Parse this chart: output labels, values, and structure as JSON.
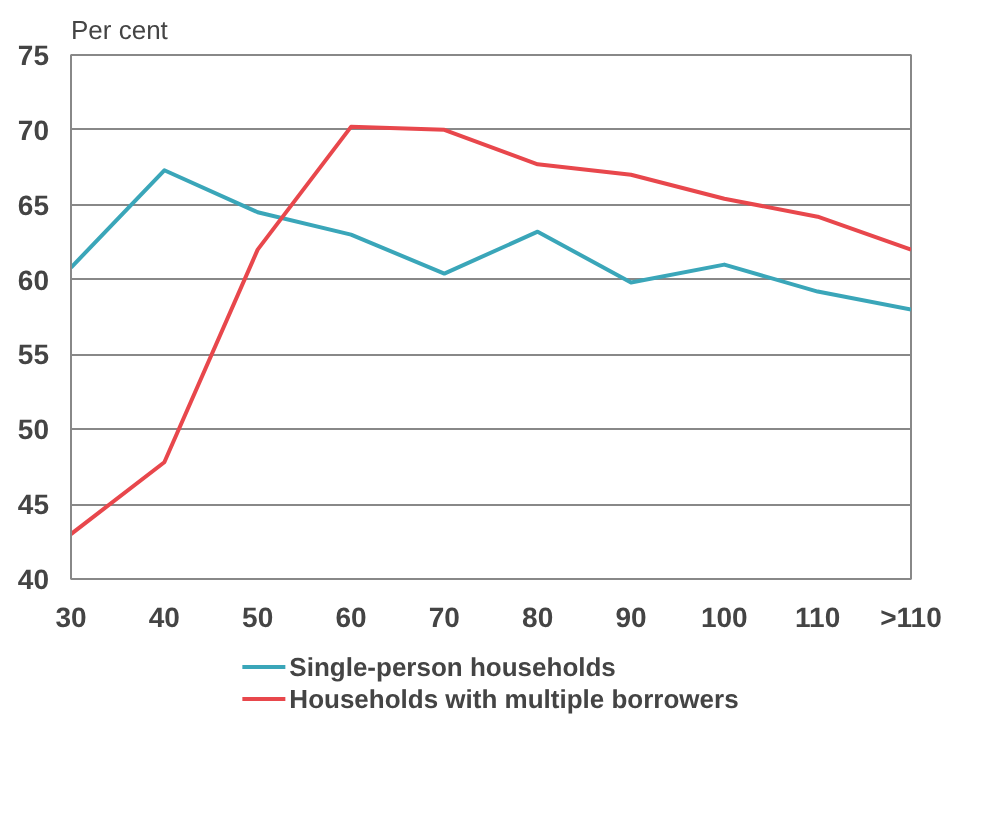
{
  "chart_data": {
    "type": "line",
    "ylabel": "Per cent",
    "categories": [
      "30",
      "40",
      "50",
      "60",
      "70",
      "80",
      "90",
      "100",
      "110",
      ">110"
    ],
    "series": [
      {
        "name": "Single-person households",
        "color": "#3aa6b9",
        "values": [
          60.8,
          67.3,
          64.5,
          63.0,
          60.4,
          63.2,
          59.8,
          61.0,
          59.2,
          58.0
        ]
      },
      {
        "name": "Households with multiple borrowers",
        "color": "#e8474c",
        "values": [
          43.0,
          47.8,
          62.0,
          70.2,
          70.0,
          67.7,
          67.0,
          65.4,
          64.2,
          62.0
        ]
      }
    ],
    "ylim": [
      40,
      75
    ],
    "yticks": [
      40,
      45,
      50,
      55,
      60,
      65,
      70,
      75
    ],
    "grid": "y",
    "legend": "bottom",
    "marker": "none",
    "line_style": "solid"
  }
}
